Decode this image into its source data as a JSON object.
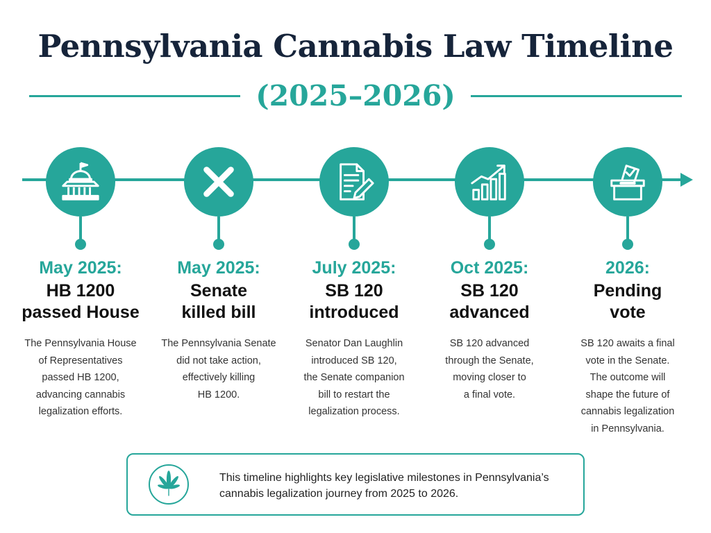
{
  "header": {
    "title": "Pennsylvania Cannabis Law Timeline",
    "subtitle": "(2025–2026)"
  },
  "colors": {
    "accent": "#26a69a",
    "title": "#16243a"
  },
  "milestones": [
    {
      "icon": "capitol-building-icon",
      "date": "May 2025:",
      "event": [
        "HB 1200",
        "passed House"
      ],
      "description": [
        "The Pennsylvania House",
        "of Representatives",
        "passed HB 1200,",
        "advancing cannabis",
        "legalization efforts."
      ]
    },
    {
      "icon": "x-mark-icon",
      "date": "May 2025:",
      "event": [
        "Senate",
        "killed bill"
      ],
      "description": [
        "The Pennsylvania Senate",
        "did not take action,",
        "effectively killing",
        "HB 1200."
      ]
    },
    {
      "icon": "document-pen-icon",
      "date": "July 2025:",
      "event": [
        "SB 120",
        "introduced"
      ],
      "description": [
        "Senator Dan Laughlin",
        "introduced SB 120,",
        "the Senate companion",
        "bill to restart the",
        "legalization process."
      ]
    },
    {
      "icon": "rising-bar-chart-icon",
      "date": "Oct 2025:",
      "event": [
        "SB 120",
        "advanced"
      ],
      "description": [
        "SB 120 advanced",
        "through the Senate,",
        "moving closer to",
        "a final vote."
      ]
    },
    {
      "icon": "ballot-box-icon",
      "date": "2026:",
      "event": [
        "Pending",
        "vote"
      ],
      "description": [
        "SB 120 awaits a final",
        "vote in the Senate.",
        "The outcome will",
        "shape the future of",
        "cannabis legalization",
        "in Pennsylvania."
      ]
    }
  ],
  "footer_note": {
    "icon": "cannabis-leaf-icon",
    "lines": [
      "This timeline highlights key legislative milestones in Pennsylvania’s",
      "cannabis legalization journey from 2025 to 2026."
    ]
  }
}
